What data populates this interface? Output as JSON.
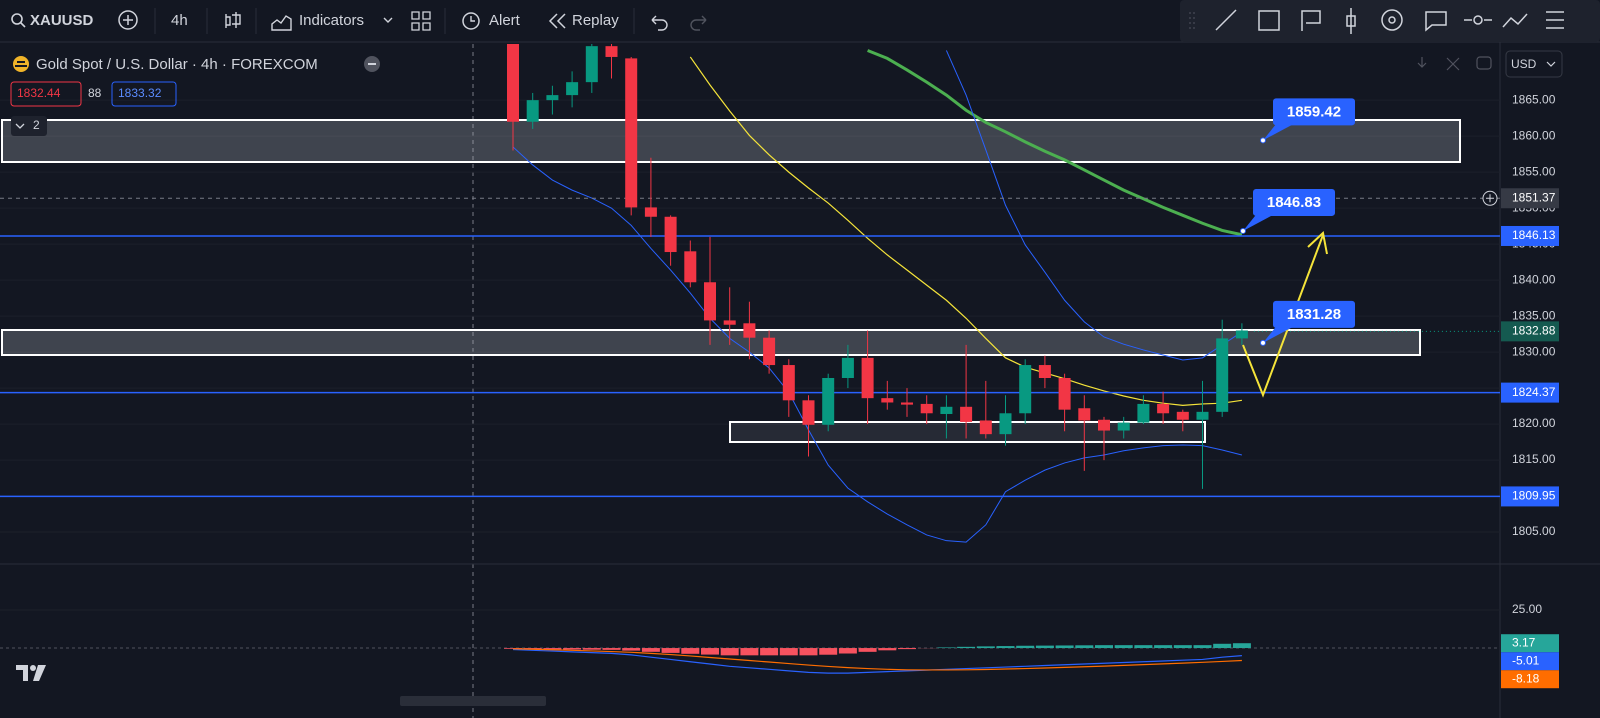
{
  "toolbar": {
    "symbol": "XAUUSD",
    "interval": "4h",
    "indicators": "Indicators",
    "alert": "Alert",
    "replay": "Replay"
  },
  "legend": {
    "title": "Gold Spot / U.S. Dollar · 4h · FOREXCOM",
    "bid": 1832.44,
    "spread": 88,
    "ask": 1833.32,
    "collapsed_count": 2
  },
  "currency": "USD",
  "chart_data": [
    {
      "type": "candlestick",
      "open": [
        1873,
        1862,
        1865,
        1865.7,
        1867.5,
        1872.5,
        1870.8,
        1850.1,
        1848.8,
        1844,
        1839.7,
        1834.4,
        1834,
        1832,
        1828.2,
        1823.3,
        1819.9,
        1826.4,
        1829.2,
        1823.6,
        1823,
        1822.8,
        1821.4,
        1822.4,
        1820.5,
        1818.6,
        1821.5,
        1828.2,
        1826.4,
        1822.2,
        1820.6,
        1819.1,
        1820.2,
        1822.8,
        1821.7,
        1820.6,
        1821.7,
        1831.9
      ],
      "high": [
        1874,
        1866,
        1867,
        1869,
        1873,
        1873,
        1871,
        1857,
        1849,
        1845.5,
        1846,
        1839,
        1837,
        1833,
        1829,
        1824,
        1827,
        1831,
        1833,
        1826,
        1825,
        1824,
        1824,
        1831,
        1826,
        1824,
        1829,
        1829.5,
        1827,
        1824,
        1821,
        1821,
        1824,
        1824.5,
        1822,
        1826,
        1834.5,
        1834
      ],
      "low": [
        1858,
        1861,
        1863,
        1864,
        1866,
        1868,
        1849,
        1846,
        1842,
        1839,
        1831,
        1831,
        1829,
        1827,
        1821,
        1815.5,
        1819,
        1825,
        1820,
        1822,
        1821,
        1820,
        1818,
        1818,
        1818,
        1817,
        1820,
        1825,
        1819,
        1813.5,
        1815,
        1818,
        1820,
        1820,
        1819,
        1811,
        1821,
        1831
      ],
      "close": [
        1862,
        1865,
        1865.7,
        1867.5,
        1872.5,
        1871,
        1850.1,
        1848.8,
        1843.9,
        1839.7,
        1834.4,
        1833.8,
        1832,
        1828.2,
        1823.3,
        1819.9,
        1826.4,
        1829.2,
        1823.6,
        1823,
        1822.7,
        1821.5,
        1822.4,
        1820.3,
        1818.6,
        1821.5,
        1828.2,
        1826.4,
        1822,
        1820.5,
        1819.1,
        1820.2,
        1822.8,
        1821.5,
        1820.6,
        1821.7,
        1831.9,
        1833
      ],
      "up_color": "#089981",
      "down_color": "#f23645",
      "lines": [
        {
          "color": "#f5e43a",
          "width": 1.2,
          "values": [
            null,
            null,
            null,
            null,
            null,
            null,
            null,
            null,
            null,
            1871,
            1867.1,
            1863.5,
            1860.1,
            1857.4,
            1855,
            1852.8,
            1850.7,
            1848.3,
            1845.8,
            1843.5,
            1841.4,
            1839.3,
            1837.2,
            1834.7,
            1831.9,
            1829.2,
            1827.9,
            1827.1,
            1826.3,
            1825.4,
            1824.6,
            1823.9,
            1823.3,
            1822.9,
            1822.6,
            1822.8,
            1822.9,
            1823.3
          ]
        },
        {
          "color": "#4caf50",
          "width": 3,
          "values": [
            null,
            null,
            null,
            null,
            null,
            null,
            null,
            null,
            null,
            null,
            null,
            null,
            null,
            null,
            null,
            null,
            null,
            null,
            1871.9,
            1870.8,
            1869.2,
            1867.5,
            1865.7,
            1863.6,
            1861.9,
            1860.6,
            1859.2,
            1857.9,
            1856.7,
            1855.3,
            1853.9,
            1852.5,
            1851.3,
            1850.1,
            1849,
            1847.9,
            1846.9,
            1846.3
          ]
        },
        {
          "color": "#2962ff",
          "width": 1,
          "values": [
            null,
            null,
            null,
            null,
            null,
            null,
            null,
            null,
            null,
            null,
            null,
            null,
            null,
            null,
            null,
            null,
            null,
            null,
            null,
            null,
            null,
            null,
            1871.9,
            1865.7,
            1858.1,
            1850.4,
            1844.9,
            1841.1,
            1837.2,
            1834.2,
            1832.1,
            1831.1,
            1830.3,
            1829.6,
            1828.9,
            1829.2,
            1831,
            1832.8
          ]
        },
        {
          "color": "#2962ff",
          "width": 1,
          "values": [
            1858.5,
            1856,
            1853.9,
            1852.5,
            1851.4,
            1850,
            1847.6,
            1844.4,
            1841.4,
            1838.2,
            1834.7,
            1831.9,
            1830,
            1827.8,
            1824.4,
            1819.2,
            1814.3,
            1811.1,
            1809.2,
            1807.5,
            1806,
            1804.6,
            1803.8,
            1803.6,
            1806,
            1810.6,
            1812.2,
            1813.6,
            1814.6,
            1815.3,
            1815.7,
            1816.3,
            1816.7,
            1817,
            1817.1,
            1817,
            1816.4,
            1815.7
          ]
        }
      ],
      "ylim": [
        1800.7,
        1872.8
      ],
      "yticks": [
        {
          "value": 1805,
          "label": "1805.00"
        },
        {
          "value": 1810,
          "label": "1810.00"
        },
        {
          "value": 1815,
          "label": "1815.00"
        },
        {
          "value": 1820,
          "label": "1820.00"
        },
        {
          "value": 1825,
          "label": "1825.00"
        },
        {
          "value": 1830,
          "label": "1830.00"
        },
        {
          "value": 1835,
          "label": "1835.00"
        },
        {
          "value": 1840,
          "label": "1840.00"
        },
        {
          "value": 1845,
          "label": "1845.00"
        },
        {
          "value": 1850,
          "label": "1850.00"
        },
        {
          "value": 1855,
          "label": "1855.00"
        },
        {
          "value": 1860,
          "label": "1860.00"
        },
        {
          "value": 1865,
          "label": "1865.00"
        }
      ],
      "horizontal_lines": [
        1846.13,
        1824.37,
        1809.95
      ],
      "line_color": "#2962ff",
      "crosshair_price": 1851.37,
      "last_price": 1832.88,
      "callouts": [
        1859.42,
        1846.83,
        1831.28
      ]
    },
    {
      "type": "macd",
      "histogram": [
        -0.5,
        -0.7,
        -0.9,
        -1,
        -1.1,
        -1.2,
        -1.7,
        -2.5,
        -3.2,
        -3.8,
        -4.3,
        -4.8,
        -4.8,
        -4.8,
        -4.8,
        -4.8,
        -4.4,
        -3.6,
        -2.5,
        -1.5,
        -0.7,
        -0.1,
        0.4,
        0.8,
        1.1,
        1.3,
        1.5,
        1.6,
        1.7,
        1.8,
        1.9,
        1.9,
        1.9,
        1.9,
        1.9,
        1.9,
        2.8,
        3.17
      ],
      "macd": [
        -1,
        -1.5,
        -2,
        -2.5,
        -3,
        -3.5,
        -4.5,
        -6,
        -7.5,
        -9,
        -10.5,
        -12,
        -13,
        -14,
        -15,
        -16,
        -16.5,
        -16.5,
        -16,
        -15.5,
        -15,
        -14.5,
        -14,
        -13.5,
        -13,
        -12.5,
        -12,
        -11.5,
        -11,
        -10.5,
        -10,
        -9.5,
        -9,
        -8.5,
        -8,
        -7.5,
        -6,
        -5.01
      ],
      "signal": [
        -0.5,
        -0.8,
        -1.1,
        -1.5,
        -1.9,
        -2.3,
        -2.8,
        -3.5,
        -4.3,
        -5.2,
        -6.2,
        -7.2,
        -8.2,
        -9.2,
        -10.2,
        -11.2,
        -12.1,
        -12.9,
        -13.5,
        -14,
        -14.3,
        -14.4,
        -14.4,
        -14.3,
        -14.1,
        -13.8,
        -13.5,
        -13.1,
        -12.7,
        -12.3,
        -11.9,
        -11.4,
        -10.9,
        -10.4,
        -9.9,
        -9.4,
        -8.8,
        -8.18
      ],
      "histogram_up_color": "#26a69a",
      "histogram_down_color": "#f7525f",
      "macd_color": "#2962ff",
      "signal_color": "#ff6d00",
      "ylim": [
        -46,
        54.6
      ],
      "yticks": [
        {
          "value": 25,
          "label": "25.00"
        }
      ]
    }
  ]
}
